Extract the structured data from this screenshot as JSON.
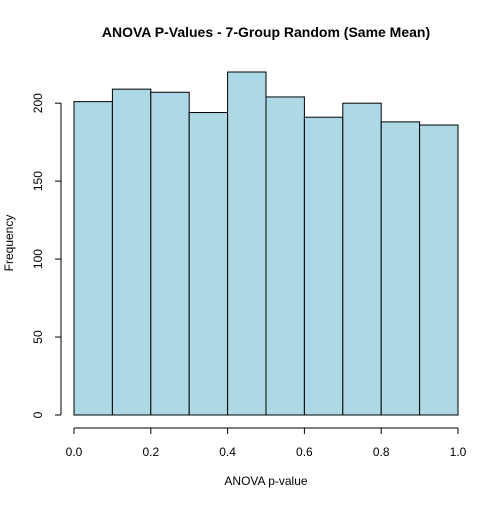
{
  "colors": {
    "bar_fill": "#add8e6",
    "bar_stroke": "#000000",
    "axis": "#000000",
    "background": "#ffffff"
  },
  "chart_data": {
    "type": "bar",
    "title": "ANOVA P-Values - 7-Group Random (Same Mean)",
    "xlabel": "ANOVA p-value",
    "ylabel": "Frequency",
    "bins": [
      {
        "start": 0.0,
        "end": 0.1,
        "count": 201
      },
      {
        "start": 0.1,
        "end": 0.2,
        "count": 209
      },
      {
        "start": 0.2,
        "end": 0.3,
        "count": 207
      },
      {
        "start": 0.3,
        "end": 0.4,
        "count": 194
      },
      {
        "start": 0.4,
        "end": 0.5,
        "count": 220
      },
      {
        "start": 0.5,
        "end": 0.6,
        "count": 204
      },
      {
        "start": 0.6,
        "end": 0.7,
        "count": 191
      },
      {
        "start": 0.7,
        "end": 0.8,
        "count": 200
      },
      {
        "start": 0.8,
        "end": 0.9,
        "count": 188
      },
      {
        "start": 0.9,
        "end": 1.0,
        "count": 186
      }
    ],
    "xlim": [
      0.0,
      1.0
    ],
    "ylim": [
      0,
      220
    ],
    "x_ticks": [
      0.0,
      0.2,
      0.4,
      0.6,
      0.8,
      1.0
    ],
    "x_tick_labels": [
      "0.0",
      "0.2",
      "0.4",
      "0.6",
      "0.8",
      "1.0"
    ],
    "y_ticks": [
      0,
      50,
      100,
      150,
      200
    ],
    "y_tick_labels": [
      "0",
      "50",
      "100",
      "150",
      "200"
    ],
    "grid": false,
    "legend": "none"
  }
}
